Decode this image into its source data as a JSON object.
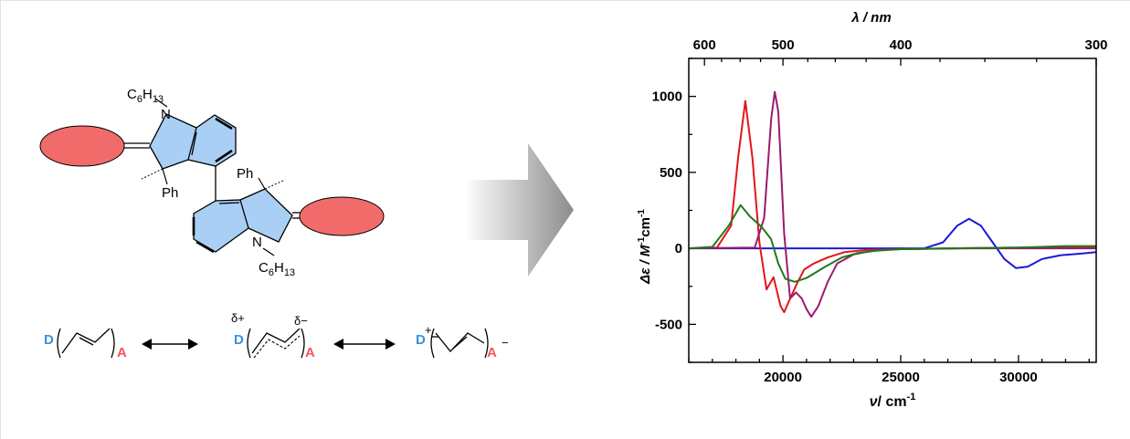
{
  "molecule": {
    "labels": {
      "n_top": "N",
      "hexyl_top_base": "C",
      "hexyl_top_sub": "6",
      "hexyl_top_H": "H",
      "hexyl_top_sub2": "13",
      "ph_top": "Ph",
      "ph_bottom": "Ph",
      "n_bottom": "N",
      "hexyl_bottom_base": "C",
      "hexyl_bottom_sub": "6",
      "hexyl_bottom_H": "H",
      "hexyl_bottom_sub2": "13"
    },
    "acceptor_color": "#f26b6b",
    "indole_color": "#a9cff5"
  },
  "resonance": {
    "donor": "D",
    "acceptor": "A",
    "delta_plus": "δ+",
    "delta_minus": "δ−",
    "plus": "+",
    "minus": "−",
    "donor_color": "#3a8fe0",
    "acceptor_color": "#f0555a"
  },
  "chart_data": {
    "type": "line",
    "xlabel_base": "ν",
    "xlabel_units": "/ cm",
    "xlabel_exp": "-1",
    "ylabel": "Δε / M",
    "ylabel_exp1": "-1",
    "ylabel_mid": "cm",
    "ylabel_exp2": "-1",
    "top_axis_label": "λ / nm",
    "xlim": [
      16000,
      33300
    ],
    "ylim": [
      -750,
      1250
    ],
    "x_ticks": [
      20000,
      25000,
      30000
    ],
    "y_ticks": [
      1000,
      500,
      0,
      -500
    ],
    "top_ticks_nm": [
      600,
      500,
      400,
      300
    ],
    "top_minor_nm": [
      575,
      550,
      525,
      475,
      450,
      425,
      375,
      350,
      325
    ],
    "series": [
      {
        "color": "#1a1ad6",
        "x": [
          16000,
          26000,
          26800,
          27400,
          27900,
          28400,
          28900,
          29400,
          29900,
          30400,
          31000,
          31800,
          32600,
          33300
        ],
        "y": [
          0,
          0,
          40,
          150,
          195,
          150,
          40,
          -70,
          -130,
          -120,
          -70,
          -45,
          -35,
          -25
        ]
      },
      {
        "color": "#e5141b",
        "x": [
          16000,
          17200,
          17800,
          18100,
          18400,
          18700,
          19000,
          19300,
          19600,
          19900,
          20050,
          20300,
          20600,
          20900,
          21300,
          21900,
          22600,
          23600,
          25000,
          27000,
          30000,
          33300
        ],
        "y": [
          0,
          5,
          150,
          600,
          970,
          600,
          40,
          -270,
          -190,
          -380,
          -420,
          -330,
          -230,
          -140,
          -100,
          -60,
          -25,
          -10,
          -5,
          0,
          5,
          10
        ]
      },
      {
        "color": "#9a1b6e",
        "x": [
          16000,
          18800,
          19200,
          19500,
          19650,
          19800,
          20050,
          20300,
          20550,
          20800,
          21000,
          21200,
          21500,
          21900,
          22300,
          23000,
          24000,
          25000,
          28000,
          33300
        ],
        "y": [
          0,
          5,
          200,
          850,
          1030,
          900,
          100,
          -330,
          -290,
          -330,
          -400,
          -450,
          -380,
          -220,
          -100,
          -40,
          -10,
          -5,
          0,
          0
        ]
      },
      {
        "color": "#1e7a1e",
        "x": [
          16000,
          17000,
          17700,
          18200,
          18600,
          19100,
          19500,
          19800,
          20100,
          20500,
          21000,
          21800,
          22500,
          23200,
          24000,
          25000,
          27000,
          30000,
          32000,
          33300
        ],
        "y": [
          0,
          10,
          150,
          285,
          210,
          140,
          60,
          -100,
          -200,
          -220,
          -195,
          -120,
          -60,
          -30,
          -15,
          -5,
          0,
          5,
          15,
          15
        ]
      }
    ]
  }
}
